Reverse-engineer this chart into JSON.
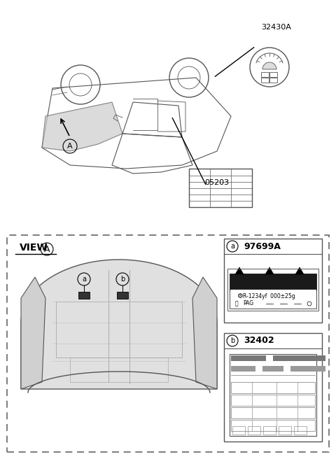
{
  "bg_color": "#ffffff",
  "title": "",
  "top_section": {
    "car_label_A": "A",
    "part_32430A": "32430A",
    "part_05203": "05203"
  },
  "bottom_section": {
    "view_label": "VIEW",
    "view_circle": "A",
    "label_a_circle": "a",
    "label_b_circle": "b",
    "part_97699A": "97699A",
    "circle_a": "a",
    "part_32402": "32402",
    "circle_b": "b",
    "refrigerant_line1": "R-1234yf  000±25g",
    "refrigerant_line2": "PAG"
  }
}
